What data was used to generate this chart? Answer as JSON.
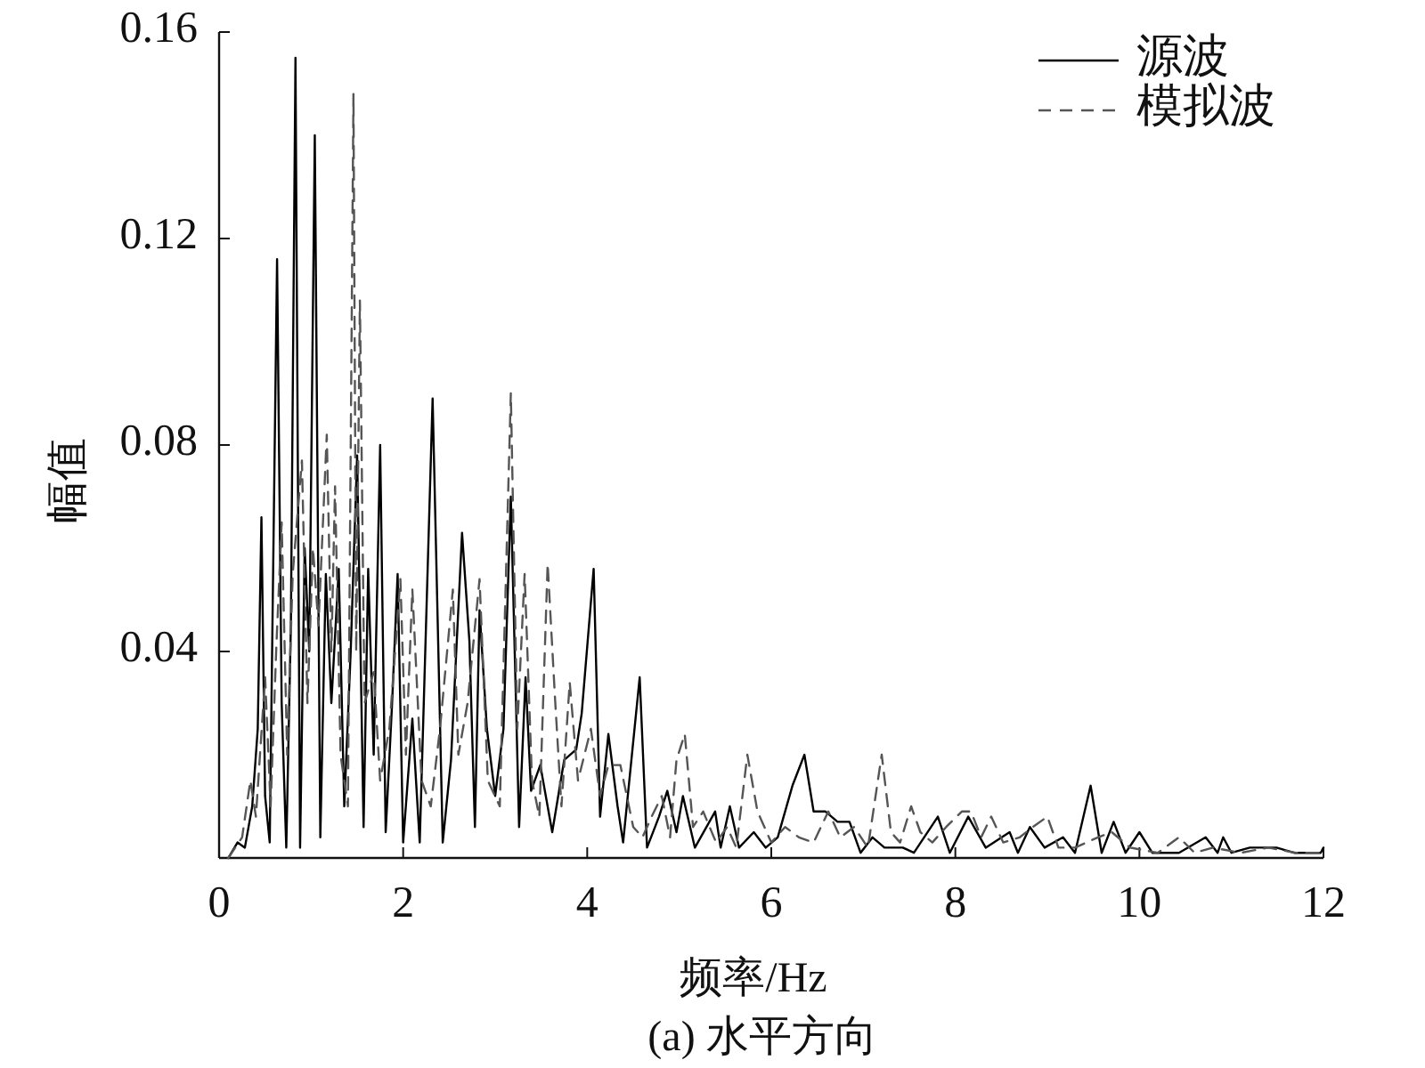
{
  "chart_data": {
    "type": "line",
    "xlabel": "频率/Hz",
    "ylabel": "幅值",
    "annotations": [
      "(a) 水平方向"
    ],
    "xlim": [
      0,
      12
    ],
    "ylim": [
      0,
      0.16
    ],
    "xticks": [
      0,
      2,
      4,
      6,
      8,
      10,
      12
    ],
    "yticks": [
      0.04,
      0.08,
      0.12,
      0.16
    ],
    "legend": "top right",
    "series": [
      {
        "name": "源波",
        "color": "#000000",
        "line_style": "solid",
        "x": [
          0.1,
          0.2,
          0.28,
          0.36,
          0.42,
          0.46,
          0.5,
          0.55,
          0.63,
          0.68,
          0.73,
          0.78,
          0.83,
          0.88,
          0.93,
          0.98,
          1.04,
          1.1,
          1.16,
          1.22,
          1.3,
          1.36,
          1.43,
          1.5,
          1.57,
          1.62,
          1.68,
          1.75,
          1.81,
          1.88,
          1.94,
          2.0,
          2.1,
          2.18,
          2.32,
          2.43,
          2.52,
          2.64,
          2.72,
          2.78,
          2.83,
          2.91,
          3.0,
          3.09,
          3.17,
          3.26,
          3.33,
          3.39,
          3.49,
          3.62,
          3.75,
          3.88,
          3.94,
          4.07,
          4.14,
          4.23,
          4.33,
          4.39,
          4.57,
          4.65,
          4.78,
          4.87,
          4.97,
          5.04,
          5.17,
          5.39,
          5.45,
          5.55,
          5.65,
          5.81,
          5.94,
          6.07,
          6.23,
          6.36,
          6.46,
          6.59,
          6.72,
          6.85,
          6.97,
          7.1,
          7.23,
          7.43,
          7.55,
          7.81,
          7.94,
          8.14,
          8.33,
          8.59,
          8.68,
          8.81,
          8.97,
          9.17,
          9.3,
          9.47,
          9.59,
          9.72,
          9.85,
          10.0,
          10.14,
          10.43,
          10.72,
          10.85,
          10.91,
          11.0,
          11.2,
          11.49,
          11.68,
          11.97,
          12.0
        ],
        "values": [
          0.0,
          0.003,
          0.002,
          0.01,
          0.025,
          0.066,
          0.012,
          0.003,
          0.116,
          0.03,
          0.002,
          0.045,
          0.155,
          0.002,
          0.06,
          0.04,
          0.14,
          0.004,
          0.055,
          0.03,
          0.056,
          0.01,
          0.04,
          0.078,
          0.006,
          0.056,
          0.02,
          0.08,
          0.005,
          0.03,
          0.055,
          0.003,
          0.027,
          0.003,
          0.089,
          0.003,
          0.019,
          0.063,
          0.042,
          0.006,
          0.048,
          0.025,
          0.012,
          0.025,
          0.07,
          0.006,
          0.035,
          0.013,
          0.018,
          0.005,
          0.019,
          0.021,
          0.028,
          0.056,
          0.008,
          0.024,
          0.01,
          0.003,
          0.035,
          0.002,
          0.008,
          0.013,
          0.005,
          0.012,
          0.002,
          0.009,
          0.002,
          0.01,
          0.002,
          0.005,
          0.002,
          0.004,
          0.014,
          0.02,
          0.009,
          0.009,
          0.007,
          0.007,
          0.001,
          0.004,
          0.002,
          0.002,
          0.001,
          0.008,
          0.001,
          0.008,
          0.002,
          0.005,
          0.001,
          0.006,
          0.002,
          0.004,
          0.001,
          0.014,
          0.001,
          0.007,
          0.001,
          0.005,
          0.001,
          0.001,
          0.004,
          0.001,
          0.004,
          0.001,
          0.002,
          0.002,
          0.001,
          0.001,
          0.002
        ]
      },
      {
        "name": "模拟波",
        "color": "#555555",
        "line_style": "dashed",
        "x": [
          0.1,
          0.25,
          0.34,
          0.4,
          0.5,
          0.56,
          0.62,
          0.68,
          0.74,
          0.8,
          0.9,
          0.96,
          1.02,
          1.08,
          1.17,
          1.22,
          1.26,
          1.32,
          1.4,
          1.46,
          1.49,
          1.53,
          1.58,
          1.68,
          1.75,
          1.85,
          1.97,
          2.03,
          2.1,
          2.2,
          2.3,
          2.4,
          2.54,
          2.6,
          2.7,
          2.83,
          2.92,
          3.05,
          3.17,
          3.24,
          3.32,
          3.4,
          3.48,
          3.57,
          3.65,
          3.72,
          3.81,
          3.9,
          4.04,
          4.14,
          4.23,
          4.36,
          4.5,
          4.6,
          4.7,
          4.81,
          4.9,
          4.97,
          5.06,
          5.15,
          5.26,
          5.4,
          5.52,
          5.62,
          5.74,
          5.85,
          6.0,
          6.15,
          6.3,
          6.46,
          6.62,
          6.75,
          6.9,
          7.05,
          7.2,
          7.3,
          7.4,
          7.52,
          7.62,
          7.75,
          7.9,
          8.07,
          8.17,
          8.28,
          8.39,
          8.52,
          8.7,
          8.84,
          9.0,
          9.12,
          9.3,
          9.55,
          9.7,
          9.9,
          10.2,
          10.43,
          10.6,
          10.8,
          11.1,
          11.4,
          11.7,
          12.0
        ],
        "values": [
          0.0,
          0.004,
          0.015,
          0.008,
          0.035,
          0.01,
          0.04,
          0.065,
          0.02,
          0.055,
          0.077,
          0.03,
          0.06,
          0.045,
          0.082,
          0.04,
          0.072,
          0.02,
          0.01,
          0.148,
          0.04,
          0.108,
          0.03,
          0.036,
          0.015,
          0.025,
          0.054,
          0.02,
          0.052,
          0.015,
          0.01,
          0.025,
          0.052,
          0.02,
          0.03,
          0.054,
          0.015,
          0.01,
          0.09,
          0.025,
          0.055,
          0.015,
          0.008,
          0.057,
          0.031,
          0.01,
          0.034,
          0.015,
          0.025,
          0.012,
          0.018,
          0.018,
          0.006,
          0.004,
          0.008,
          0.012,
          0.004,
          0.019,
          0.024,
          0.006,
          0.009,
          0.003,
          0.006,
          0.002,
          0.02,
          0.009,
          0.003,
          0.006,
          0.004,
          0.003,
          0.009,
          0.004,
          0.006,
          0.002,
          0.02,
          0.005,
          0.003,
          0.01,
          0.005,
          0.003,
          0.006,
          0.009,
          0.009,
          0.004,
          0.008,
          0.003,
          0.004,
          0.006,
          0.008,
          0.002,
          0.002,
          0.004,
          0.005,
          0.002,
          0.001,
          0.004,
          0.001,
          0.002,
          0.001,
          0.002,
          0.001,
          0.001
        ]
      }
    ]
  }
}
